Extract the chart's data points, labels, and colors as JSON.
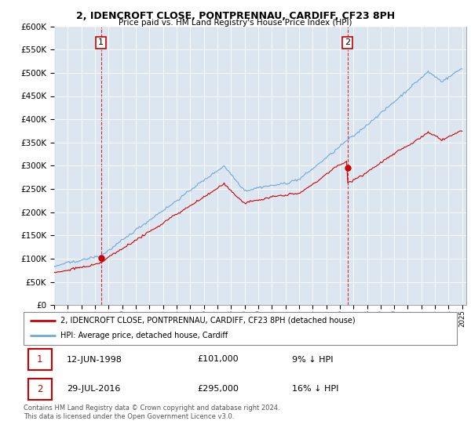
{
  "title1": "2, IDENCROFT CLOSE, PONTPRENNAU, CARDIFF, CF23 8PH",
  "title2": "Price paid vs. HM Land Registry's House Price Index (HPI)",
  "ylim": [
    0,
    600000
  ],
  "yticks": [
    0,
    50000,
    100000,
    150000,
    200000,
    250000,
    300000,
    350000,
    400000,
    450000,
    500000,
    550000,
    600000
  ],
  "sale1_date": 1998.44,
  "sale1_price": 101000,
  "sale2_date": 2016.57,
  "sale2_price": 295000,
  "legend_line1": "2, IDENCROFT CLOSE, PONTPRENNAU, CARDIFF, CF23 8PH (detached house)",
  "legend_line2": "HPI: Average price, detached house, Cardiff",
  "table_row1": [
    "1",
    "12-JUN-1998",
    "£101,000",
    "9% ↓ HPI"
  ],
  "table_row2": [
    "2",
    "29-JUL-2016",
    "£295,000",
    "16% ↓ HPI"
  ],
  "footnote": "Contains HM Land Registry data © Crown copyright and database right 2024.\nThis data is licensed under the Open Government Licence v3.0.",
  "hpi_color": "#6fa8dc",
  "price_color": "#cc0000",
  "chart_bg": "#dce6f1",
  "label_box_color": "#cc0000"
}
